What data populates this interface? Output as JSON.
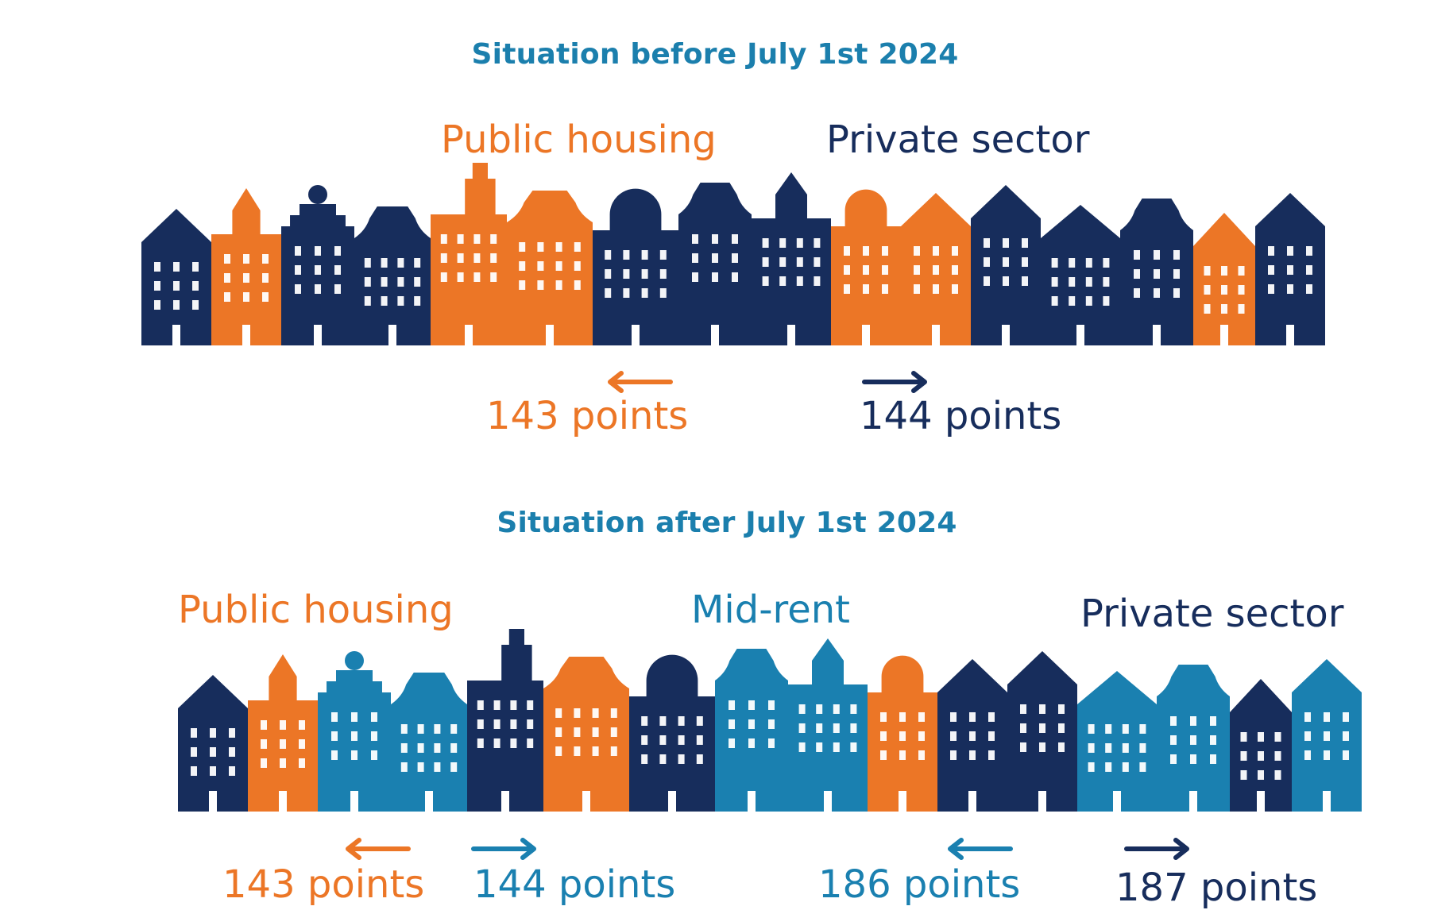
{
  "colors": {
    "navy": "#172d5c",
    "orange": "#ec7626",
    "blue": "#1a80b0",
    "title": "#1b7fad"
  },
  "before": {
    "title": "Situation before July 1st 2024",
    "labels": {
      "public": "Public housing",
      "private": "Private sector"
    },
    "thresholds": [
      {
        "text": "143 points",
        "direction": "left",
        "color": "orange"
      },
      {
        "text": "144 points",
        "direction": "right",
        "color": "navy"
      }
    ],
    "houses": [
      "navy",
      "orange",
      "navy",
      "navy",
      "orange",
      "orange",
      "navy",
      "navy",
      "navy",
      "orange",
      "orange",
      "navy",
      "navy",
      "navy",
      "orange",
      "navy"
    ]
  },
  "after": {
    "title": "Situation after July 1st 2024",
    "labels": {
      "public": "Public housing",
      "midrent": "Mid-rent",
      "private": "Private sector"
    },
    "thresholds": [
      {
        "text": "143 points",
        "direction": "left",
        "color": "orange"
      },
      {
        "text": "144 points",
        "direction": "right",
        "color": "blue"
      },
      {
        "text": "186 points",
        "direction": "left",
        "color": "blue"
      },
      {
        "text": "187 points",
        "direction": "right",
        "color": "navy"
      }
    ],
    "houses": [
      "navy",
      "orange",
      "blue",
      "blue",
      "navy",
      "orange",
      "navy",
      "blue",
      "blue",
      "orange",
      "navy",
      "navy",
      "blue",
      "blue",
      "navy",
      "blue"
    ]
  }
}
